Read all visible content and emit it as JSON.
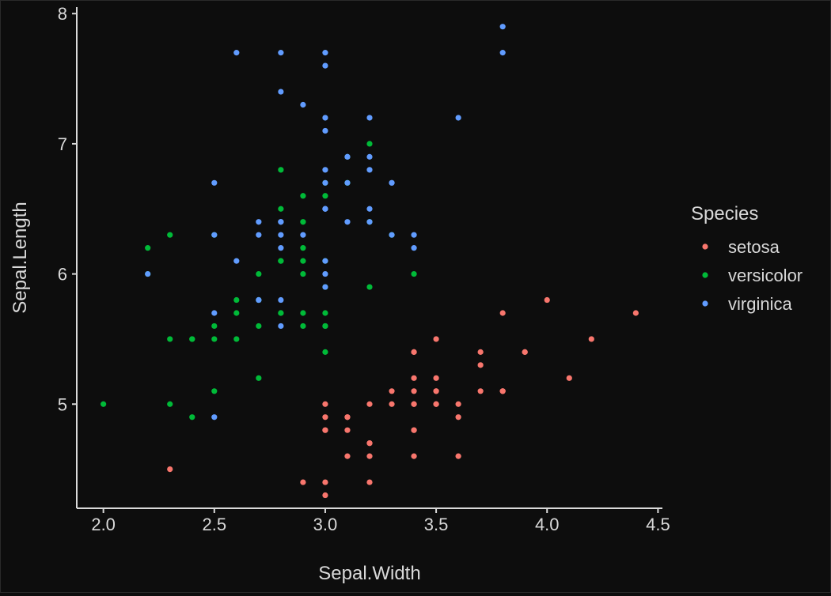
{
  "chart_data": {
    "type": "scatter",
    "title": "",
    "xlabel": "Sepal.Width",
    "ylabel": "Sepal.Length",
    "xlim": [
      1.88,
      4.52
    ],
    "ylim": [
      4.2,
      8.05
    ],
    "x_ticks": [
      2.0,
      2.5,
      3.0,
      3.5,
      4.0,
      4.5
    ],
    "x_tick_labels": [
      "2.0",
      "2.5",
      "3.0",
      "3.5",
      "4.0",
      "4.5"
    ],
    "y_ticks": [
      5,
      6,
      7,
      8
    ],
    "y_tick_labels": [
      "5",
      "6",
      "7",
      "8"
    ],
    "grid": false,
    "legend": {
      "title": "Species",
      "position": "right"
    },
    "series": [
      {
        "name": "setosa",
        "color": "#f8766d",
        "points": [
          [
            3.5,
            5.1
          ],
          [
            3.0,
            4.9
          ],
          [
            3.2,
            4.7
          ],
          [
            3.1,
            4.6
          ],
          [
            3.6,
            5.0
          ],
          [
            3.9,
            5.4
          ],
          [
            3.4,
            4.6
          ],
          [
            3.4,
            5.0
          ],
          [
            2.9,
            4.4
          ],
          [
            3.1,
            4.9
          ],
          [
            3.7,
            5.4
          ],
          [
            3.4,
            4.8
          ],
          [
            3.0,
            4.8
          ],
          [
            3.0,
            4.3
          ],
          [
            4.0,
            5.8
          ],
          [
            4.4,
            5.7
          ],
          [
            3.9,
            5.4
          ],
          [
            3.5,
            5.1
          ],
          [
            3.8,
            5.7
          ],
          [
            3.8,
            5.1
          ],
          [
            3.4,
            5.4
          ],
          [
            3.7,
            5.1
          ],
          [
            3.6,
            4.6
          ],
          [
            3.3,
            5.1
          ],
          [
            3.4,
            4.8
          ],
          [
            3.0,
            5.0
          ],
          [
            3.4,
            5.0
          ],
          [
            3.5,
            5.2
          ],
          [
            3.4,
            5.2
          ],
          [
            3.2,
            4.7
          ],
          [
            3.1,
            4.8
          ],
          [
            3.4,
            5.4
          ],
          [
            4.1,
            5.2
          ],
          [
            4.2,
            5.5
          ],
          [
            3.1,
            4.9
          ],
          [
            3.2,
            5.0
          ],
          [
            3.5,
            5.5
          ],
          [
            3.6,
            4.9
          ],
          [
            3.0,
            4.4
          ],
          [
            3.4,
            5.1
          ],
          [
            3.5,
            5.0
          ],
          [
            2.3,
            4.5
          ],
          [
            3.2,
            4.4
          ],
          [
            3.5,
            5.0
          ],
          [
            3.8,
            5.1
          ],
          [
            3.0,
            4.8
          ],
          [
            3.8,
            5.1
          ],
          [
            3.2,
            4.6
          ],
          [
            3.7,
            5.3
          ],
          [
            3.3,
            5.0
          ]
        ]
      },
      {
        "name": "versicolor",
        "color": "#00ba38",
        "points": [
          [
            3.2,
            7.0
          ],
          [
            3.2,
            6.4
          ],
          [
            3.1,
            6.9
          ],
          [
            2.3,
            5.5
          ],
          [
            2.8,
            6.5
          ],
          [
            2.8,
            5.7
          ],
          [
            3.3,
            6.3
          ],
          [
            2.4,
            4.9
          ],
          [
            2.9,
            6.6
          ],
          [
            2.7,
            5.2
          ],
          [
            2.0,
            5.0
          ],
          [
            3.0,
            5.9
          ],
          [
            2.2,
            6.0
          ],
          [
            2.9,
            6.1
          ],
          [
            2.9,
            5.6
          ],
          [
            3.1,
            6.7
          ],
          [
            3.0,
            5.6
          ],
          [
            2.7,
            5.8
          ],
          [
            2.2,
            6.2
          ],
          [
            2.5,
            5.6
          ],
          [
            3.2,
            5.9
          ],
          [
            2.8,
            6.1
          ],
          [
            2.5,
            6.3
          ],
          [
            2.8,
            6.1
          ],
          [
            2.9,
            6.4
          ],
          [
            3.0,
            6.6
          ],
          [
            2.8,
            6.8
          ],
          [
            3.0,
            6.7
          ],
          [
            2.9,
            6.0
          ],
          [
            2.6,
            5.7
          ],
          [
            2.4,
            5.5
          ],
          [
            2.4,
            5.5
          ],
          [
            2.7,
            5.8
          ],
          [
            2.7,
            6.0
          ],
          [
            3.0,
            5.4
          ],
          [
            3.4,
            6.0
          ],
          [
            3.1,
            6.7
          ],
          [
            2.3,
            6.3
          ],
          [
            3.0,
            5.6
          ],
          [
            2.5,
            5.5
          ],
          [
            2.6,
            5.5
          ],
          [
            3.0,
            6.1
          ],
          [
            2.6,
            5.8
          ],
          [
            2.3,
            5.0
          ],
          [
            2.7,
            5.6
          ],
          [
            3.0,
            5.7
          ],
          [
            2.9,
            5.7
          ],
          [
            2.9,
            6.2
          ],
          [
            2.5,
            5.1
          ],
          [
            2.8,
            5.7
          ]
        ]
      },
      {
        "name": "virginica",
        "color": "#619cff",
        "points": [
          [
            3.3,
            6.3
          ],
          [
            2.7,
            5.8
          ],
          [
            3.0,
            7.1
          ],
          [
            2.9,
            6.3
          ],
          [
            3.0,
            6.5
          ],
          [
            3.0,
            7.6
          ],
          [
            2.5,
            4.9
          ],
          [
            2.9,
            7.3
          ],
          [
            2.5,
            6.7
          ],
          [
            3.6,
            7.2
          ],
          [
            3.2,
            6.5
          ],
          [
            2.7,
            6.4
          ],
          [
            3.0,
            6.8
          ],
          [
            2.5,
            5.7
          ],
          [
            2.8,
            5.8
          ],
          [
            3.2,
            6.4
          ],
          [
            3.0,
            6.5
          ],
          [
            3.8,
            7.7
          ],
          [
            2.6,
            7.7
          ],
          [
            2.2,
            6.0
          ],
          [
            3.2,
            6.9
          ],
          [
            2.8,
            5.6
          ],
          [
            2.8,
            7.7
          ],
          [
            2.7,
            6.3
          ],
          [
            3.3,
            6.7
          ],
          [
            3.2,
            7.2
          ],
          [
            2.8,
            6.2
          ],
          [
            3.0,
            6.1
          ],
          [
            2.8,
            6.4
          ],
          [
            3.0,
            7.2
          ],
          [
            2.8,
            7.4
          ],
          [
            3.8,
            7.9
          ],
          [
            2.8,
            6.4
          ],
          [
            2.8,
            6.3
          ],
          [
            2.6,
            6.1
          ],
          [
            3.0,
            7.7
          ],
          [
            3.4,
            6.3
          ],
          [
            3.1,
            6.4
          ],
          [
            3.0,
            6.0
          ],
          [
            3.1,
            6.9
          ],
          [
            3.1,
            6.7
          ],
          [
            3.1,
            6.9
          ],
          [
            2.7,
            5.8
          ],
          [
            3.2,
            6.8
          ],
          [
            3.3,
            6.7
          ],
          [
            3.0,
            6.7
          ],
          [
            2.5,
            6.3
          ],
          [
            3.0,
            6.5
          ],
          [
            3.4,
            6.2
          ],
          [
            3.0,
            5.9
          ]
        ]
      }
    ]
  }
}
